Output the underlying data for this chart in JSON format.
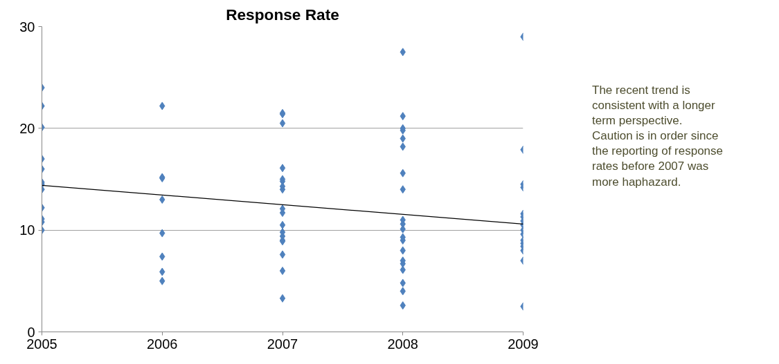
{
  "chart_data": {
    "type": "scatter",
    "title": "Response Rate",
    "marker": "diamond",
    "grid": "y",
    "xlim": [
      2005,
      2009
    ],
    "xticks": [
      2005,
      2006,
      2007,
      2008,
      2009
    ],
    "ylim": [
      0,
      30
    ],
    "yticks": [
      0,
      10,
      20,
      30
    ],
    "series": [
      {
        "color": "#4f81bd",
        "x": [
          2005,
          2005,
          2005,
          2005,
          2005,
          2005,
          2005,
          2005,
          2005,
          2005,
          2005,
          2005,
          2006,
          2006,
          2006,
          2006,
          2006,
          2006,
          2006,
          2006,
          2007,
          2007,
          2007,
          2007,
          2007,
          2007,
          2007,
          2007,
          2007,
          2007,
          2007,
          2007,
          2007,
          2007,
          2007,
          2007,
          2007,
          2007,
          2008,
          2008,
          2008,
          2008,
          2008,
          2008,
          2008,
          2008,
          2008,
          2008,
          2008,
          2008,
          2008,
          2008,
          2008,
          2008,
          2008,
          2008,
          2008,
          2008,
          2009,
          2009,
          2009,
          2009,
          2009,
          2009,
          2009,
          2009,
          2009,
          2009,
          2009,
          2009,
          2009,
          2009,
          2009,
          2009
        ],
        "values": [
          24,
          22.2,
          20.1,
          17,
          16,
          14.7,
          14.5,
          14,
          12.2,
          11.1,
          10.8,
          10,
          22.2,
          15.2,
          15.1,
          13,
          9.7,
          7.4,
          5.9,
          5,
          21.5,
          21.4,
          20.5,
          16.1,
          15,
          14.8,
          14.3,
          14,
          12.1,
          11.7,
          10.5,
          9.8,
          9.4,
          9,
          8.9,
          7.6,
          6,
          3.3,
          27.5,
          21.2,
          20,
          19.8,
          19,
          18.2,
          15.6,
          14,
          11,
          10.6,
          10.1,
          9.3,
          9,
          8,
          7,
          6.7,
          6.1,
          4.8,
          4,
          2.6,
          29,
          17.9,
          14.5,
          14.2,
          11.6,
          11.3,
          10.9,
          10.5,
          10,
          9.6,
          9,
          8.7,
          8.4,
          8,
          7,
          2.5
        ]
      },
      {
        "type": "line",
        "marker": "none",
        "color": "#000000",
        "x": [
          2005,
          2009
        ],
        "values": [
          14.4,
          10.6
        ]
      }
    ],
    "annotations": [
      "The recent trend is consistent with a longer term perspective. Caution is in order since the reporting of response rates before 2007 was more haphazard."
    ]
  }
}
